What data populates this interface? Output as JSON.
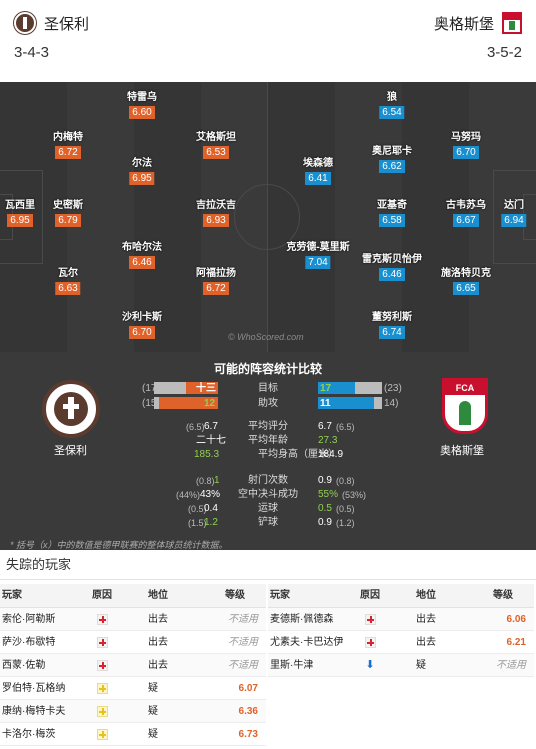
{
  "header": {
    "home_team": "圣保利",
    "away_team": "奥格斯堡",
    "home_formation": "3-4-3",
    "away_formation": "3-5-2"
  },
  "pitch": {
    "home_players": [
      {
        "name": "瓦西里",
        "rating": "6.95"
      },
      {
        "name": "内梅特",
        "rating": "6.72"
      },
      {
        "name": "史密斯",
        "rating": "6.79"
      },
      {
        "name": "瓦尔",
        "rating": "6.63"
      },
      {
        "name": "特雷乌",
        "rating": "6.60"
      },
      {
        "name": "尔法",
        "rating": "6.95"
      },
      {
        "name": "布哈尔法",
        "rating": "6.46"
      },
      {
        "name": "沙利卡斯",
        "rating": "6.70"
      },
      {
        "name": "艾格斯坦",
        "rating": "6.53"
      },
      {
        "name": "吉拉沃吉",
        "rating": "6.93"
      },
      {
        "name": "阿福拉扬",
        "rating": "6.72"
      }
    ],
    "away_players": [
      {
        "name": "狼",
        "rating": "6.54"
      },
      {
        "name": "埃森德",
        "rating": "6.41"
      },
      {
        "name": "克劳德-莫里斯",
        "rating": "7.04"
      },
      {
        "name": "奥尼耶卡",
        "rating": "6.62"
      },
      {
        "name": "亚基奇",
        "rating": "6.58"
      },
      {
        "name": "雷克斯贝怡伊",
        "rating": "6.46"
      },
      {
        "name": "董努利斯",
        "rating": "6.74"
      },
      {
        "name": "马努玛",
        "rating": "6.70"
      },
      {
        "name": "古韦苏乌",
        "rating": "6.67"
      },
      {
        "name": "施洛特贝克",
        "rating": "6.65"
      },
      {
        "name": "达门",
        "rating": "6.94"
      }
    ],
    "watermark": "© WhoScored.com"
  },
  "comparison": {
    "title": "可能的阵容统计比较",
    "home_name": "圣保利",
    "away_name": "奥格斯堡",
    "goals": {
      "label": "目标",
      "home": "十三",
      "home_paren": "(17",
      "away": "17",
      "away_paren": "(23)",
      "home_frac": 0.5,
      "away_frac": 0.58
    },
    "assists": {
      "label": "助攻",
      "home": "12",
      "home_paren": "(15",
      "away": "11",
      "away_paren": "14)",
      "home_frac": 0.92,
      "away_frac": 0.88
    },
    "rows": [
      {
        "label": "平均评分",
        "home": "6.7",
        "home_paren": "(6.5)",
        "away": "6.7",
        "away_paren": "(6.5)"
      },
      {
        "label": "平均年龄",
        "home": "二十七",
        "home_paren": "",
        "away": "27.3",
        "away_paren": ""
      },
      {
        "label": "平均身高（厘米）",
        "home": "185.3",
        "home_paren": "",
        "away": "184.9",
        "away_paren": ""
      },
      {
        "label": "射门次数",
        "home": "1",
        "home_paren": "(0.8)",
        "away": "0.9",
        "away_paren": "(0.8)"
      },
      {
        "label": "空中决斗成功",
        "home": "43%",
        "home_paren": "(44%)",
        "away": "55%",
        "away_paren": "(53%)"
      },
      {
        "label": "运球",
        "home": "0.4",
        "home_paren": "(0.5)",
        "away": "0.5",
        "away_paren": "(0.5)"
      },
      {
        "label": "铲球",
        "home": "1.2",
        "home_paren": "(1.5)",
        "away": "0.9",
        "away_paren": "(1.2)"
      }
    ],
    "note": "* 括号（x）中的数值是德甲联赛的整体球员统计数据。"
  },
  "missing": {
    "title": "失踪的玩家",
    "headers": {
      "player": "玩家",
      "reason": "原因",
      "status": "地位",
      "rating": "等级"
    },
    "home": [
      {
        "name": "索伦·阿勒斯",
        "reason": "injury",
        "status": "出去",
        "rating": "不适用"
      },
      {
        "name": "萨沙·布歇特",
        "reason": "injury",
        "status": "出去",
        "rating": "不适用"
      },
      {
        "name": "西蒙·佐勒",
        "reason": "injury",
        "status": "出去",
        "rating": "不适用"
      },
      {
        "name": "罗伯特·瓦格纳",
        "reason": "doubt",
        "status": "疑",
        "rating": "6.07"
      },
      {
        "name": "康纳·梅特卡夫",
        "reason": "doubt",
        "status": "疑",
        "rating": "6.36"
      },
      {
        "name": "卡洛尔·梅茨",
        "reason": "doubt",
        "status": "疑",
        "rating": "6.73"
      }
    ],
    "away": [
      {
        "name": "麦德斯·佩德森",
        "reason": "injury",
        "status": "出去",
        "rating": "6.06"
      },
      {
        "name": "尤素夫·卡巴达伊",
        "reason": "injury",
        "status": "出去",
        "rating": "6.21"
      },
      {
        "name": "里斯·牛津",
        "reason": "arrow",
        "status": "疑",
        "rating": "不适用"
      }
    ]
  }
}
